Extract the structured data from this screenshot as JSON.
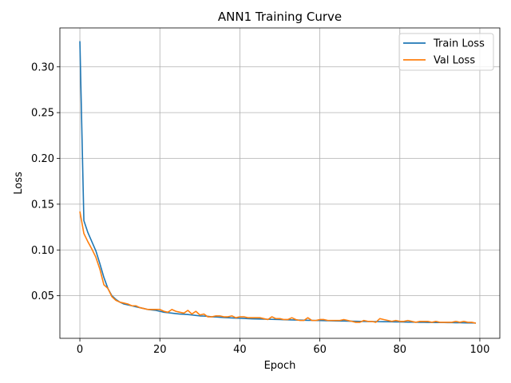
{
  "chart_data": {
    "type": "line",
    "title": "ANN1 Training Curve",
    "xlabel": "Epoch",
    "ylabel": "Loss",
    "xlim": [
      -5,
      105
    ],
    "ylim": [
      0.0035,
      0.3425
    ],
    "xticks": [
      0,
      20,
      40,
      60,
      80,
      100
    ],
    "yticks": [
      0.05,
      0.1,
      0.15,
      0.2,
      0.25,
      0.3
    ],
    "xtick_labels": [
      "0",
      "20",
      "40",
      "60",
      "80",
      "100"
    ],
    "ytick_labels": [
      "0.05",
      "0.10",
      "0.15",
      "0.20",
      "0.25",
      "0.30"
    ],
    "grid": true,
    "legend_position": "top-right",
    "series": [
      {
        "name": "Train Loss",
        "color": "#1f77b4",
        "values": [
          0.328,
          0.132,
          0.119,
          0.109,
          0.099,
          0.085,
          0.07,
          0.058,
          0.05,
          0.046,
          0.043,
          0.041,
          0.04,
          0.039,
          0.038,
          0.037,
          0.036,
          0.035,
          0.0345,
          0.034,
          0.033,
          0.032,
          0.0315,
          0.031,
          0.0305,
          0.03,
          0.0298,
          0.0295,
          0.029,
          0.0285,
          0.028,
          0.0278,
          0.0275,
          0.027,
          0.0268,
          0.0265,
          0.0262,
          0.026,
          0.0258,
          0.0256,
          0.0254,
          0.0252,
          0.025,
          0.0248,
          0.0247,
          0.0246,
          0.0245,
          0.0243,
          0.0242,
          0.0241,
          0.024,
          0.0238,
          0.0237,
          0.0236,
          0.0235,
          0.0234,
          0.0233,
          0.0232,
          0.0231,
          0.023,
          0.0229,
          0.0228,
          0.0227,
          0.0226,
          0.0225,
          0.0224,
          0.0224,
          0.0223,
          0.0222,
          0.0221,
          0.022,
          0.022,
          0.0219,
          0.0218,
          0.0218,
          0.0217,
          0.0216,
          0.0216,
          0.0215,
          0.0214,
          0.0214,
          0.0213,
          0.0212,
          0.0212,
          0.0211,
          0.021,
          0.021,
          0.0209,
          0.0209,
          0.0208,
          0.0207,
          0.0207,
          0.0206,
          0.0206,
          0.0205,
          0.0205,
          0.0204,
          0.0203,
          0.0203,
          0.0202
        ]
      },
      {
        "name": "Val Loss",
        "color": "#ff7f0e",
        "values": [
          0.142,
          0.118,
          0.109,
          0.101,
          0.092,
          0.079,
          0.062,
          0.058,
          0.049,
          0.045,
          0.043,
          0.042,
          0.041,
          0.039,
          0.039,
          0.037,
          0.036,
          0.035,
          0.035,
          0.035,
          0.035,
          0.033,
          0.032,
          0.035,
          0.033,
          0.032,
          0.031,
          0.034,
          0.03,
          0.033,
          0.029,
          0.03,
          0.027,
          0.027,
          0.028,
          0.028,
          0.027,
          0.027,
          0.028,
          0.026,
          0.027,
          0.027,
          0.026,
          0.026,
          0.026,
          0.026,
          0.025,
          0.024,
          0.027,
          0.025,
          0.025,
          0.024,
          0.024,
          0.026,
          0.024,
          0.023,
          0.023,
          0.026,
          0.023,
          0.023,
          0.024,
          0.024,
          0.023,
          0.023,
          0.023,
          0.023,
          0.024,
          0.023,
          0.022,
          0.021,
          0.021,
          0.023,
          0.022,
          0.022,
          0.021,
          0.025,
          0.024,
          0.023,
          0.022,
          0.023,
          0.022,
          0.022,
          0.023,
          0.022,
          0.021,
          0.022,
          0.022,
          0.022,
          0.021,
          0.022,
          0.021,
          0.021,
          0.021,
          0.021,
          0.022,
          0.021,
          0.022,
          0.021,
          0.021,
          0.02
        ]
      }
    ]
  }
}
